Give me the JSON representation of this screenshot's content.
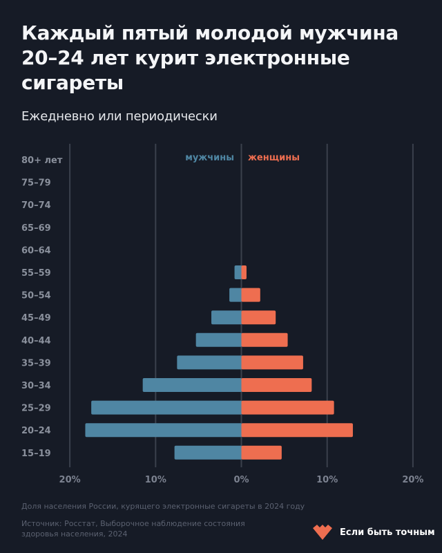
{
  "header": {
    "title": "Каждый пятый молодой мужчина 20–24 лет курит электронные сигареты",
    "subtitle": "Ежедневно или периодически"
  },
  "colors": {
    "background": "#161b26",
    "male": "#4f86a3",
    "female": "#ee6e50",
    "grid": "#3a404c",
    "brand": "#ee6e50"
  },
  "chart_data": {
    "type": "bar",
    "orientation": "horizontal",
    "layout": "population-pyramid",
    "title": "Каждый пятый молодой мужчина 20–24 лет курит электронные сигареты",
    "subtitle": "Ежедневно или периодически",
    "xlabel": "",
    "ylabel": "",
    "categories": [
      "80+ лет",
      "75–79",
      "70–74",
      "65–69",
      "60–64",
      "55–59",
      "50–54",
      "45–49",
      "40–44",
      "35–39",
      "30–34",
      "25–29",
      "20–24",
      "15–19"
    ],
    "series": [
      {
        "name": "мужчины",
        "side": "left",
        "values": [
          0,
          0,
          0,
          0,
          0,
          0.8,
          1.4,
          3.5,
          5.3,
          7.5,
          11.5,
          17.5,
          18.2,
          7.8
        ]
      },
      {
        "name": "женщины",
        "side": "right",
        "values": [
          0,
          0,
          0,
          0,
          0,
          0.6,
          2.2,
          4.0,
          5.4,
          7.2,
          8.2,
          10.8,
          13.0,
          4.7
        ]
      }
    ],
    "xlim": [
      -20,
      20
    ],
    "xticks": [
      {
        "value": -20,
        "label": "20%"
      },
      {
        "value": -10,
        "label": "10%"
      },
      {
        "value": 0,
        "label": "0%"
      },
      {
        "value": 10,
        "label": "10%"
      },
      {
        "value": 20,
        "label": "20%"
      }
    ],
    "unit": "%",
    "grid": true,
    "legend": "top-center"
  },
  "footer": {
    "note": "Доля населения России, курящего электронные сигареты в 2024 году",
    "source_line1": "Источник: Росстат, Выборочное наблюдение состояния",
    "source_line2": "здоровья населения, 2024",
    "brand_name": "Если быть точным",
    "brand_icon": "heart-logo-icon"
  }
}
